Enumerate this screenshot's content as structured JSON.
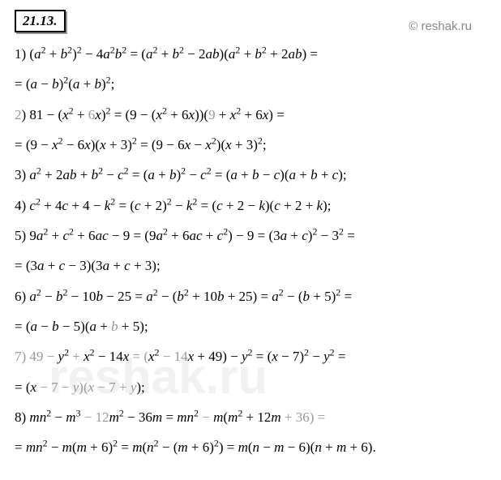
{
  "problem_number": "21.13.",
  "watermark": "© reshak.ru",
  "bg_watermark": "reshak.ru",
  "colors": {
    "text": "#000000",
    "grey": "#999999",
    "watermark": "#888888",
    "bg_watermark": "rgba(200,200,200,0.25)",
    "border": "#000000",
    "shadow": "#999999",
    "background": "#ffffff"
  },
  "typography": {
    "body_fontsize": 17,
    "number_fontsize": 17,
    "watermark_fontsize": 15,
    "bg_watermark_fontsize": 60,
    "line_height": 1.55,
    "font_family": "Times New Roman"
  },
  "lines": [
    {
      "parts": [
        {
          "t": "1) (",
          "c": "black"
        },
        {
          "t": "a",
          "i": true
        },
        {
          "t": "2",
          "sup": true
        },
        {
          "t": " + "
        },
        {
          "t": "b",
          "i": true
        },
        {
          "t": "2",
          "sup": true
        },
        {
          "t": ")"
        },
        {
          "t": "2",
          "sup": true
        },
        {
          "t": " − 4"
        },
        {
          "t": "a",
          "i": true
        },
        {
          "t": "2",
          "sup": true
        },
        {
          "t": "b",
          "i": true
        },
        {
          "t": "2",
          "sup": true
        },
        {
          "t": " = ("
        },
        {
          "t": "a",
          "i": true
        },
        {
          "t": "2",
          "sup": true
        },
        {
          "t": " + "
        },
        {
          "t": "b",
          "i": true
        },
        {
          "t": "2",
          "sup": true
        },
        {
          "t": " − 2"
        },
        {
          "t": "ab",
          "i": true
        },
        {
          "t": ")("
        },
        {
          "t": "a",
          "i": true
        },
        {
          "t": "2",
          "sup": true
        },
        {
          "t": " + "
        },
        {
          "t": "b",
          "i": true
        },
        {
          "t": "2",
          "sup": true
        },
        {
          "t": " + 2"
        },
        {
          "t": "ab",
          "i": true
        },
        {
          "t": ") ="
        }
      ]
    },
    {
      "parts": [
        {
          "t": "= ("
        },
        {
          "t": "a",
          "i": true
        },
        {
          "t": " − "
        },
        {
          "t": "b",
          "i": true
        },
        {
          "t": ")"
        },
        {
          "t": "2",
          "sup": true
        },
        {
          "t": "("
        },
        {
          "t": "a",
          "i": true
        },
        {
          "t": " + "
        },
        {
          "t": "b",
          "i": true
        },
        {
          "t": ")"
        },
        {
          "t": "2",
          "sup": true
        },
        {
          "t": ";"
        }
      ]
    },
    {
      "parts": [
        {
          "t": "2",
          "c": "grey"
        },
        {
          "t": ") 81 − ("
        },
        {
          "t": "x",
          "i": true
        },
        {
          "t": "2",
          "sup": true
        },
        {
          "t": " + "
        },
        {
          "t": "6",
          "c": "grey"
        },
        {
          "t": "x",
          "i": true
        },
        {
          "t": ")"
        },
        {
          "t": "2",
          "sup": true
        },
        {
          "t": " = (9 − ("
        },
        {
          "t": "x",
          "i": true
        },
        {
          "t": "2",
          "sup": true
        },
        {
          "t": " + 6"
        },
        {
          "t": "x",
          "i": true
        },
        {
          "t": "))("
        },
        {
          "t": "9",
          "c": "grey"
        },
        {
          "t": " + "
        },
        {
          "t": "x",
          "i": true
        },
        {
          "t": "2",
          "sup": true
        },
        {
          "t": " + 6"
        },
        {
          "t": "x",
          "i": true
        },
        {
          "t": ") ="
        }
      ]
    },
    {
      "parts": [
        {
          "t": "= (9 − "
        },
        {
          "t": "x",
          "i": true
        },
        {
          "t": "2",
          "sup": true
        },
        {
          "t": " − 6"
        },
        {
          "t": "x",
          "i": true
        },
        {
          "t": ")("
        },
        {
          "t": "x",
          "i": true
        },
        {
          "t": " + 3)"
        },
        {
          "t": "2",
          "sup": true
        },
        {
          "t": " = (9 − 6"
        },
        {
          "t": "x",
          "i": true
        },
        {
          "t": " − "
        },
        {
          "t": "x",
          "i": true
        },
        {
          "t": "2",
          "sup": true
        },
        {
          "t": ")("
        },
        {
          "t": "x",
          "i": true
        },
        {
          "t": " + 3)"
        },
        {
          "t": "2",
          "sup": true
        },
        {
          "t": ";"
        }
      ]
    },
    {
      "parts": [
        {
          "t": "3) "
        },
        {
          "t": "a",
          "i": true
        },
        {
          "t": "2",
          "sup": true
        },
        {
          "t": " + 2"
        },
        {
          "t": "ab",
          "i": true
        },
        {
          "t": " + "
        },
        {
          "t": "b",
          "i": true
        },
        {
          "t": "2",
          "sup": true
        },
        {
          "t": " − "
        },
        {
          "t": "c",
          "i": true
        },
        {
          "t": "2",
          "sup": true
        },
        {
          "t": " = ("
        },
        {
          "t": "a",
          "i": true
        },
        {
          "t": " + "
        },
        {
          "t": "b",
          "i": true
        },
        {
          "t": ")"
        },
        {
          "t": "2",
          "sup": true
        },
        {
          "t": " − "
        },
        {
          "t": "c",
          "i": true
        },
        {
          "t": "2",
          "sup": true
        },
        {
          "t": " = ("
        },
        {
          "t": "a",
          "i": true
        },
        {
          "t": " + "
        },
        {
          "t": "b",
          "i": true
        },
        {
          "t": " − "
        },
        {
          "t": "c",
          "i": true
        },
        {
          "t": ")("
        },
        {
          "t": "a",
          "i": true
        },
        {
          "t": " + "
        },
        {
          "t": "b",
          "i": true
        },
        {
          "t": " + "
        },
        {
          "t": "c",
          "i": true
        },
        {
          "t": ");"
        }
      ]
    },
    {
      "parts": [
        {
          "t": "4) "
        },
        {
          "t": "c",
          "i": true
        },
        {
          "t": "2",
          "sup": true
        },
        {
          "t": " + 4"
        },
        {
          "t": "c",
          "i": true
        },
        {
          "t": " + 4 − "
        },
        {
          "t": "k",
          "i": true
        },
        {
          "t": "2",
          "sup": true
        },
        {
          "t": " = ("
        },
        {
          "t": "c",
          "i": true
        },
        {
          "t": " + 2)"
        },
        {
          "t": "2",
          "sup": true
        },
        {
          "t": " − "
        },
        {
          "t": "k",
          "i": true
        },
        {
          "t": "2",
          "sup": true
        },
        {
          "t": " = ("
        },
        {
          "t": "c",
          "i": true
        },
        {
          "t": " + 2 − "
        },
        {
          "t": "k",
          "i": true
        },
        {
          "t": ")("
        },
        {
          "t": "c",
          "i": true
        },
        {
          "t": " + 2 + "
        },
        {
          "t": "k",
          "i": true
        },
        {
          "t": ");"
        }
      ]
    },
    {
      "parts": [
        {
          "t": "5) 9"
        },
        {
          "t": "a",
          "i": true
        },
        {
          "t": "2",
          "sup": true
        },
        {
          "t": " + "
        },
        {
          "t": "c",
          "i": true
        },
        {
          "t": "2",
          "sup": true
        },
        {
          "t": " + 6"
        },
        {
          "t": "ac",
          "i": true
        },
        {
          "t": " − 9 = (9"
        },
        {
          "t": "a",
          "i": true
        },
        {
          "t": "2",
          "sup": true
        },
        {
          "t": " + 6"
        },
        {
          "t": "ac",
          "i": true
        },
        {
          "t": " + "
        },
        {
          "t": "c",
          "i": true
        },
        {
          "t": "2",
          "sup": true
        },
        {
          "t": ") − 9 = (3"
        },
        {
          "t": "a",
          "i": true
        },
        {
          "t": " + "
        },
        {
          "t": "c",
          "i": true
        },
        {
          "t": ")"
        },
        {
          "t": "2",
          "sup": true
        },
        {
          "t": " − 3"
        },
        {
          "t": "2",
          "sup": true
        },
        {
          "t": " ="
        }
      ]
    },
    {
      "parts": [
        {
          "t": "= (3"
        },
        {
          "t": "a",
          "i": true
        },
        {
          "t": " + "
        },
        {
          "t": "c",
          "i": true
        },
        {
          "t": " − 3)(3"
        },
        {
          "t": "a",
          "i": true
        },
        {
          "t": " + "
        },
        {
          "t": "c",
          "i": true
        },
        {
          "t": " + 3);"
        }
      ]
    },
    {
      "parts": [
        {
          "t": "6) "
        },
        {
          "t": "a",
          "i": true
        },
        {
          "t": "2",
          "sup": true
        },
        {
          "t": " − "
        },
        {
          "t": "b",
          "i": true
        },
        {
          "t": "2",
          "sup": true
        },
        {
          "t": " − 10"
        },
        {
          "t": "b",
          "i": true
        },
        {
          "t": " − 25 = "
        },
        {
          "t": "a",
          "i": true
        },
        {
          "t": "2",
          "sup": true
        },
        {
          "t": " − ("
        },
        {
          "t": "b",
          "i": true
        },
        {
          "t": "2",
          "sup": true
        },
        {
          "t": " + 10"
        },
        {
          "t": "b",
          "i": true
        },
        {
          "t": " + 25) = "
        },
        {
          "t": "a",
          "i": true
        },
        {
          "t": "2",
          "sup": true
        },
        {
          "t": " − ("
        },
        {
          "t": "b",
          "i": true
        },
        {
          "t": " + 5)"
        },
        {
          "t": "2",
          "sup": true
        },
        {
          "t": " ="
        }
      ]
    },
    {
      "parts": [
        {
          "t": "= ("
        },
        {
          "t": "a",
          "i": true
        },
        {
          "t": " − "
        },
        {
          "t": "b",
          "i": true
        },
        {
          "t": " − 5)("
        },
        {
          "t": "a",
          "i": true
        },
        {
          "t": " + "
        },
        {
          "t": "b",
          "i": true,
          "c": "grey"
        },
        {
          "t": " + 5);"
        }
      ]
    },
    {
      "parts": [
        {
          "t": "7) ",
          "c": "grey"
        },
        {
          "t": "49 − ",
          "c": "grey"
        },
        {
          "t": "y",
          "i": true
        },
        {
          "t": "2",
          "sup": true
        },
        {
          "t": " + ",
          "c": "grey"
        },
        {
          "t": "x",
          "i": true
        },
        {
          "t": "2",
          "sup": true
        },
        {
          "t": " − 14"
        },
        {
          "t": "x",
          "i": true
        },
        {
          "t": " = (",
          "c": "grey"
        },
        {
          "t": "x",
          "i": true
        },
        {
          "t": "2",
          "sup": true
        },
        {
          "t": " − ",
          "c": "grey"
        },
        {
          "t": "14",
          "c": "grey"
        },
        {
          "t": "x",
          "i": true
        },
        {
          "t": " + 49) − "
        },
        {
          "t": "y",
          "i": true
        },
        {
          "t": "2",
          "sup": true
        },
        {
          "t": " = ("
        },
        {
          "t": "x",
          "i": true
        },
        {
          "t": " − 7)"
        },
        {
          "t": "2",
          "sup": true
        },
        {
          "t": " − "
        },
        {
          "t": "y",
          "i": true
        },
        {
          "t": "2",
          "sup": true
        },
        {
          "t": " ="
        }
      ]
    },
    {
      "parts": [
        {
          "t": "= ("
        },
        {
          "t": "x",
          "i": true
        },
        {
          "t": " − 7 − ",
          "c": "grey"
        },
        {
          "t": "y",
          "i": true,
          "c": "grey"
        },
        {
          "t": ")(",
          "c": "grey"
        },
        {
          "t": "x",
          "i": true,
          "c": "grey"
        },
        {
          "t": " − 7 + ",
          "c": "grey"
        },
        {
          "t": "y",
          "i": true,
          "c": "grey"
        },
        {
          "t": ");"
        }
      ]
    },
    {
      "parts": [
        {
          "t": "8) "
        },
        {
          "t": "mn",
          "i": true
        },
        {
          "t": "2",
          "sup": true
        },
        {
          "t": " − "
        },
        {
          "t": "m",
          "i": true
        },
        {
          "t": "3",
          "sup": true
        },
        {
          "t": " − ",
          "c": "grey"
        },
        {
          "t": "12",
          "c": "grey"
        },
        {
          "t": "m",
          "i": true
        },
        {
          "t": "2",
          "sup": true
        },
        {
          "t": " − 36"
        },
        {
          "t": "m",
          "i": true
        },
        {
          "t": " = "
        },
        {
          "t": "mn",
          "i": true
        },
        {
          "t": "2",
          "sup": true
        },
        {
          "t": " − ",
          "c": "grey"
        },
        {
          "t": "m",
          "i": true
        },
        {
          "t": "("
        },
        {
          "t": "m",
          "i": true
        },
        {
          "t": "2",
          "sup": true
        },
        {
          "t": " + 12"
        },
        {
          "t": "m",
          "i": true
        },
        {
          "t": " + ",
          "c": "grey"
        },
        {
          "t": "36",
          "c": "grey"
        },
        {
          "t": ") =",
          "c": "grey"
        }
      ]
    },
    {
      "parts": [
        {
          "t": "= "
        },
        {
          "t": "mn",
          "i": true
        },
        {
          "t": "2",
          "sup": true
        },
        {
          "t": " − "
        },
        {
          "t": "m",
          "i": true
        },
        {
          "t": "("
        },
        {
          "t": "m",
          "i": true
        },
        {
          "t": " + 6)"
        },
        {
          "t": "2",
          "sup": true
        },
        {
          "t": " = "
        },
        {
          "t": "m",
          "i": true
        },
        {
          "t": "("
        },
        {
          "t": "n",
          "i": true
        },
        {
          "t": "2",
          "sup": true
        },
        {
          "t": " − ("
        },
        {
          "t": "m",
          "i": true
        },
        {
          "t": " + 6)"
        },
        {
          "t": "2",
          "sup": true
        },
        {
          "t": ") = "
        },
        {
          "t": "m",
          "i": true
        },
        {
          "t": "("
        },
        {
          "t": "n",
          "i": true
        },
        {
          "t": " − "
        },
        {
          "t": "m",
          "i": true
        },
        {
          "t": " − 6)("
        },
        {
          "t": "n",
          "i": true
        },
        {
          "t": " + "
        },
        {
          "t": "m",
          "i": true
        },
        {
          "t": " + 6)."
        }
      ]
    }
  ]
}
